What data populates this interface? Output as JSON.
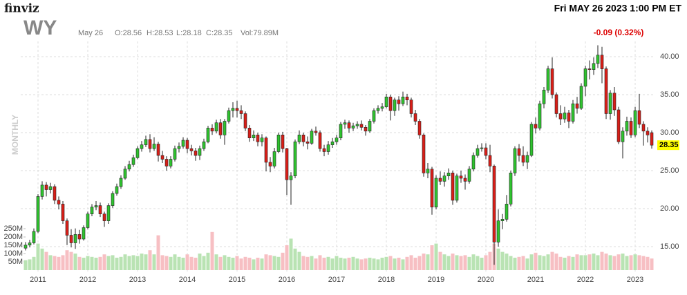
{
  "header": {
    "logo": "finviz",
    "datetime": "Fri MAY 26 2023 1:00 PM ET",
    "ticker": "WY",
    "date": "May 26",
    "open": "O:28.56",
    "high": "H:28.53",
    "low": "L:28.18",
    "close": "C:28.35",
    "volume": "Vol:79.89M",
    "change": "-0.09 (0.32%)",
    "timeframe": "MONTHLY"
  },
  "chart_data": {
    "type": "candlestick",
    "categories": [
      null,
      null,
      null,
      "2011",
      null,
      null,
      null,
      null,
      null,
      null,
      null,
      null,
      null,
      null,
      null,
      "2012",
      null,
      null,
      null,
      null,
      null,
      null,
      null,
      null,
      null,
      null,
      null,
      "2013",
      null,
      null,
      null,
      null,
      null,
      null,
      null,
      null,
      null,
      null,
      null,
      "2014",
      null,
      null,
      null,
      null,
      null,
      null,
      null,
      null,
      null,
      null,
      null,
      "2015",
      null,
      null,
      null,
      null,
      null,
      null,
      null,
      null,
      null,
      null,
      null,
      "2016",
      null,
      null,
      null,
      null,
      null,
      null,
      null,
      null,
      null,
      null,
      null,
      "2017",
      null,
      null,
      null,
      null,
      null,
      null,
      null,
      null,
      null,
      null,
      null,
      "2018",
      null,
      null,
      null,
      null,
      null,
      null,
      null,
      null,
      null,
      null,
      null,
      "2019",
      null,
      null,
      null,
      null,
      null,
      null,
      null,
      null,
      null,
      null,
      null,
      "2020",
      null,
      null,
      null,
      null,
      null,
      null,
      null,
      null,
      null,
      null,
      null,
      "2021",
      null,
      null,
      null,
      null,
      null,
      null,
      null,
      null,
      null,
      null,
      null,
      "2022",
      null,
      null,
      null,
      null,
      null,
      null,
      null,
      null,
      null,
      null,
      null,
      "2023",
      null,
      null,
      null,
      null
    ],
    "open": [
      14.8,
      15.2,
      15.5,
      17.0,
      21.6,
      23.1,
      22.5,
      22.9,
      21.1,
      20.6,
      18.4,
      16.5,
      15.5,
      16.6,
      16.0,
      17.5,
      19.3,
      20.2,
      20.4,
      19.3,
      18.4,
      20.4,
      22.0,
      22.9,
      24.0,
      25.2,
      25.8,
      26.7,
      27.9,
      28.4,
      29.1,
      27.9,
      28.5,
      27.0,
      26.5,
      25.6,
      26.5,
      27.9,
      28.2,
      29.0,
      27.9,
      27.6,
      27.0,
      27.9,
      28.8,
      30.6,
      30.2,
      31.3,
      29.7,
      31.5,
      32.9,
      33.2,
      32.9,
      32.5,
      30.6,
      29.3,
      29.7,
      28.8,
      29.3,
      26.1,
      25.6,
      27.5,
      29.7,
      27.9,
      23.8,
      24.3,
      28.8,
      29.7,
      28.8,
      28.6,
      30.2,
      30.0,
      27.9,
      27.5,
      28.4,
      28.8,
      29.3,
      31.1,
      31.3,
      30.6,
      30.9,
      31.1,
      30.7,
      30.2,
      31.5,
      32.9,
      33.2,
      33.4,
      34.7,
      32.9,
      34.3,
      33.8,
      34.7,
      34.3,
      32.5,
      31.5,
      29.7,
      24.7,
      25.2,
      20.2,
      24.0,
      23.6,
      24.3,
      24.7,
      21.1,
      24.3,
      24.0,
      23.6,
      25.2,
      27.0,
      27.9,
      28.0,
      27.0,
      25.6,
      15.6,
      18.4,
      18.6,
      20.6,
      24.7,
      27.9,
      27.0,
      26.1,
      27.0,
      31.1,
      30.6,
      33.8,
      35.6,
      38.4,
      35.0,
      32.5,
      31.8,
      32.6,
      31.5,
      33.8,
      33.2,
      36.1,
      38.4,
      38.3,
      39.1,
      40.2,
      38.4,
      32.5,
      35.2,
      33.0,
      28.8,
      30.2,
      31.5,
      29.7,
      32.9,
      31.1,
      30.2,
      30.0
    ],
    "high": [
      15.6,
      15.9,
      17.4,
      21.9,
      23.6,
      23.5,
      23.4,
      23.2,
      21.6,
      21.0,
      18.7,
      17.3,
      17.4,
      17.2,
      17.8,
      19.6,
      20.6,
      21.0,
      20.8,
      19.6,
      20.7,
      22.3,
      23.3,
      24.4,
      25.6,
      26.3,
      27.1,
      28.2,
      28.9,
      29.6,
      29.8,
      29.4,
      28.8,
      27.6,
      26.9,
      26.9,
      28.3,
      28.7,
      29.4,
      29.3,
      28.4,
      28.0,
      28.3,
      29.2,
      30.9,
      31.1,
      31.7,
      31.8,
      31.8,
      33.3,
      34.0,
      34.2,
      33.6,
      32.8,
      31.0,
      30.3,
      30.0,
      29.8,
      29.5,
      26.8,
      28.0,
      30.0,
      30.1,
      28.0,
      24.8,
      29.1,
      30.3,
      30.0,
      29.5,
      30.5,
      30.8,
      30.3,
      28.4,
      28.9,
      29.3,
      29.7,
      31.4,
      31.7,
      31.6,
      31.3,
      31.5,
      31.6,
      31.0,
      31.8,
      33.2,
      33.6,
      33.9,
      35.1,
      35.0,
      34.6,
      34.8,
      35.4,
      35.1,
      34.6,
      33.0,
      31.8,
      29.9,
      26.0,
      25.5,
      24.4,
      24.9,
      24.8,
      25.3,
      25.0,
      24.6,
      25.0,
      24.5,
      25.6,
      27.4,
      28.4,
      28.6,
      28.6,
      28.4,
      25.8,
      19.9,
      19.3,
      21.8,
      25.0,
      28.2,
      28.5,
      28.2,
      27.5,
      31.4,
      32.0,
      34.2,
      36.0,
      38.8,
      39.9,
      35.3,
      33.6,
      33.4,
      33.0,
      34.3,
      34.7,
      36.5,
      38.8,
      39.5,
      39.9,
      41.5,
      41.3,
      38.7,
      35.6,
      36.0,
      33.4,
      30.7,
      32.1,
      32.0,
      33.4,
      35.1,
      31.5,
      30.7,
      30.3
    ],
    "low": [
      14.5,
      14.9,
      15.3,
      16.8,
      21.2,
      21.6,
      22.0,
      20.6,
      19.9,
      18.0,
      15.2,
      14.9,
      14.7,
      15.4,
      15.8,
      17.3,
      19.0,
      19.8,
      18.9,
      17.6,
      18.0,
      20.1,
      21.7,
      22.6,
      23.8,
      24.9,
      25.5,
      26.5,
      27.5,
      28.1,
      27.4,
      27.6,
      26.2,
      26.0,
      25.0,
      25.3,
      26.2,
      27.4,
      27.9,
      27.3,
      27.0,
      26.3,
      26.4,
      27.6,
      28.6,
      29.7,
      29.9,
      29.2,
      28.4,
      31.2,
      32.0,
      32.0,
      31.8,
      30.2,
      28.8,
      28.9,
      28.2,
      28.2,
      24.9,
      24.8,
      25.3,
      27.3,
      27.4,
      21.8,
      20.5,
      24.0,
      28.5,
      28.2,
      27.8,
      28.4,
      29.6,
      27.5,
      26.9,
      27.1,
      28.0,
      28.4,
      29.0,
      30.5,
      30.0,
      30.2,
      30.5,
      30.3,
      29.6,
      30.0,
      31.2,
      32.5,
      32.8,
      33.2,
      31.6,
      32.2,
      32.9,
      33.5,
      33.6,
      32.0,
      31.0,
      29.2,
      24.2,
      24.0,
      19.2,
      19.9,
      23.1,
      22.9,
      23.8,
      20.5,
      20.8,
      23.4,
      22.5,
      23.3,
      24.9,
      26.7,
      27.5,
      26.5,
      24.8,
      12.6,
      15.0,
      17.3,
      18.3,
      20.3,
      24.3,
      26.2,
      25.6,
      25.2,
      26.8,
      29.9,
      30.3,
      33.2,
      35.2,
      34.5,
      32.0,
      31.0,
      31.3,
      30.6,
      31.2,
      32.5,
      33.0,
      34.8,
      37.0,
      37.6,
      38.5,
      36.5,
      31.8,
      31.7,
      32.2,
      28.5,
      26.6,
      29.6,
      29.3,
      29.4,
      30.6,
      28.3,
      28.7,
      27.9
    ],
    "close": [
      15.2,
      15.5,
      17.0,
      21.6,
      23.1,
      22.5,
      22.9,
      21.1,
      20.6,
      18.4,
      16.5,
      15.5,
      16.6,
      16.0,
      17.5,
      19.3,
      20.2,
      20.4,
      19.3,
      18.4,
      20.4,
      22.0,
      22.9,
      24.0,
      25.2,
      25.8,
      26.7,
      27.9,
      28.4,
      29.1,
      27.9,
      28.5,
      27.0,
      26.5,
      25.6,
      26.5,
      27.9,
      28.2,
      29.0,
      27.9,
      27.6,
      27.0,
      27.9,
      28.8,
      30.6,
      30.2,
      31.3,
      29.7,
      31.5,
      32.9,
      33.2,
      32.9,
      32.5,
      30.6,
      29.3,
      29.7,
      28.8,
      29.3,
      26.1,
      25.6,
      27.5,
      29.7,
      27.9,
      23.8,
      24.3,
      28.8,
      29.7,
      28.8,
      28.6,
      30.2,
      30.0,
      27.9,
      27.5,
      28.4,
      28.8,
      29.3,
      31.1,
      31.3,
      30.6,
      30.9,
      31.1,
      30.7,
      30.2,
      31.5,
      32.9,
      33.2,
      33.4,
      34.7,
      32.9,
      34.3,
      33.8,
      34.7,
      34.3,
      32.5,
      31.5,
      29.7,
      24.7,
      25.2,
      20.2,
      24.0,
      23.6,
      24.3,
      24.7,
      21.1,
      24.3,
      24.0,
      23.6,
      25.2,
      27.0,
      27.9,
      28.0,
      27.0,
      25.6,
      15.6,
      18.4,
      18.6,
      20.6,
      24.7,
      27.9,
      27.0,
      26.1,
      27.0,
      31.1,
      30.6,
      33.8,
      35.6,
      38.4,
      35.0,
      32.5,
      31.8,
      32.6,
      31.5,
      33.8,
      33.2,
      36.1,
      38.4,
      38.3,
      39.1,
      40.2,
      38.4,
      32.5,
      35.2,
      33.0,
      28.8,
      30.2,
      31.5,
      29.7,
      32.9,
      31.1,
      30.2,
      29.7,
      28.35
    ],
    "volume": [
      60,
      65,
      80,
      160,
      130,
      110,
      90,
      85,
      80,
      90,
      120,
      110,
      100,
      80,
      75,
      85,
      80,
      75,
      80,
      95,
      85,
      90,
      75,
      80,
      95,
      85,
      90,
      85,
      100,
      95,
      120,
      95,
      210,
      90,
      85,
      80,
      95,
      80,
      75,
      95,
      80,
      75,
      100,
      85,
      105,
      230,
      95,
      80,
      90,
      80,
      75,
      85,
      70,
      80,
      75,
      65,
      75,
      70,
      95,
      90,
      85,
      80,
      105,
      150,
      190,
      130,
      110,
      85,
      80,
      85,
      70,
      90,
      75,
      80,
      70,
      85,
      75,
      70,
      75,
      80,
      70,
      65,
      70,
      75,
      70,
      65,
      75,
      80,
      85,
      70,
      75,
      65,
      80,
      90,
      75,
      85,
      100,
      95,
      150,
      160,
      110,
      95,
      85,
      100,
      90,
      85,
      90,
      80,
      95,
      85,
      75,
      90,
      110,
      160,
      130,
      110,
      100,
      85,
      75,
      80,
      85,
      70,
      95,
      105,
      90,
      85,
      95,
      110,
      100,
      80,
      75,
      85,
      80,
      95,
      90,
      90,
      95,
      100,
      90,
      110,
      100,
      90,
      85,
      95,
      100,
      85,
      90,
      95,
      90,
      85,
      80,
      70
    ],
    "ylim": [
      11.5,
      42
    ],
    "yticks": [
      {
        "value": 15,
        "label": "15.00"
      },
      {
        "value": 20,
        "label": "20.00"
      },
      {
        "value": 25,
        "label": "25.00"
      },
      {
        "value": 30,
        "label": "30.00"
      },
      {
        "value": 35,
        "label": "35.00"
      },
      {
        "value": 40,
        "label": "40.00"
      }
    ],
    "volume_ylim": [
      0,
      290
    ],
    "volume_ticks": [
      {
        "value": 50,
        "label": "50M"
      },
      {
        "value": 100,
        "label": "100M"
      },
      {
        "value": 150,
        "label": "150M"
      },
      {
        "value": 200,
        "label": "200M"
      },
      {
        "value": 250,
        "label": "250M"
      }
    ],
    "up_color": "#2fc32f",
    "down_color": "#d91e18",
    "up_volume_color": "#b9e3b3",
    "down_volume_color": "#f7bfc3",
    "grid": true
  }
}
